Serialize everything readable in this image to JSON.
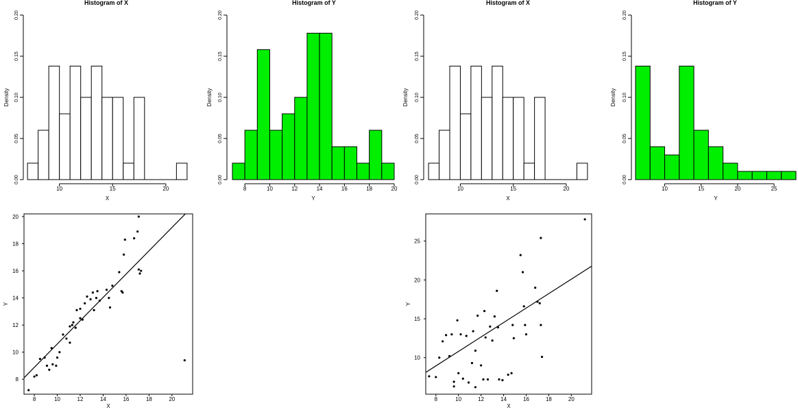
{
  "colors": {
    "histogram_fill_green": "#00ee00",
    "histogram_fill_white": "#ffffff",
    "stroke": "#000000"
  },
  "chart_data": [
    {
      "type": "bar",
      "subtype": "histogram",
      "title": "Histogram of X",
      "xlabel": "X",
      "ylabel": "Density",
      "fill": "white",
      "bin_edges": [
        7,
        8,
        9,
        10,
        11,
        12,
        13,
        14,
        15,
        16,
        17,
        18,
        19,
        20,
        21,
        22
      ],
      "values": [
        0.02,
        0.06,
        0.138,
        0.08,
        0.138,
        0.1,
        0.138,
        0.1,
        0.1,
        0.02,
        0.1,
        0,
        0,
        0,
        0.02
      ],
      "xlim": [
        6.8,
        22.2
      ],
      "ylim": [
        0,
        0.2
      ],
      "xticks": [
        10,
        15,
        20
      ],
      "yticks": [
        "0.00",
        "0.05",
        "0.10",
        "0.15",
        "0.20"
      ]
    },
    {
      "type": "bar",
      "subtype": "histogram",
      "title": "Histogram of Y",
      "xlabel": "Y",
      "ylabel": "Density",
      "fill": "green",
      "bin_edges": [
        7,
        8,
        9,
        10,
        11,
        12,
        13,
        14,
        15,
        16,
        17,
        18,
        19,
        20
      ],
      "values": [
        0.02,
        0.06,
        0.158,
        0.06,
        0.08,
        0.1,
        0.178,
        0.178,
        0.04,
        0.04,
        0.02,
        0.06,
        0.02
      ],
      "xlim": [
        7,
        20
      ],
      "ylim": [
        0,
        0.2
      ],
      "xticks": [
        8,
        10,
        12,
        14,
        16,
        18,
        20
      ],
      "yticks": [
        "0.00",
        "0.05",
        "0.10",
        "0.15",
        "0.20"
      ]
    },
    {
      "type": "bar",
      "subtype": "histogram",
      "title": "Histogram of X",
      "xlabel": "X",
      "ylabel": "Density",
      "fill": "white",
      "bin_edges": [
        7,
        8,
        9,
        10,
        11,
        12,
        13,
        14,
        15,
        16,
        17,
        18,
        19,
        20,
        21,
        22
      ],
      "values": [
        0.02,
        0.06,
        0.138,
        0.08,
        0.138,
        0.1,
        0.138,
        0.1,
        0.1,
        0.02,
        0.1,
        0,
        0,
        0,
        0.02
      ],
      "xlim": [
        6.8,
        22.2
      ],
      "ylim": [
        0,
        0.2
      ],
      "xticks": [
        10,
        15,
        20
      ],
      "yticks": [
        "0.00",
        "0.05",
        "0.10",
        "0.15",
        "0.20"
      ]
    },
    {
      "type": "bar",
      "subtype": "histogram",
      "title": "Histogram of Y",
      "xlabel": "Y",
      "ylabel": "Density",
      "fill": "green",
      "bin_edges": [
        6,
        8,
        10,
        12,
        14,
        16,
        18,
        20,
        22,
        24,
        26,
        28
      ],
      "values": [
        0.138,
        0.04,
        0.03,
        0.138,
        0.06,
        0.04,
        0.02,
        0.01,
        0.01,
        0.01,
        0.01
      ],
      "xlim": [
        6,
        28
      ],
      "ylim": [
        0,
        0.2
      ],
      "xticks": [
        10,
        15,
        20,
        25
      ],
      "yticks": [
        "0.00",
        "0.05",
        "0.10",
        "0.15",
        "0.20"
      ]
    },
    {
      "type": "scatter",
      "xlabel": "X",
      "ylabel": "Y",
      "xlim": [
        7.1,
        21.8
      ],
      "ylim": [
        6.9,
        20.2
      ],
      "xticks": [
        8,
        10,
        12,
        14,
        16,
        18,
        20
      ],
      "yticks": [
        8,
        10,
        12,
        14,
        16,
        18,
        20
      ],
      "fit_line": {
        "intercept": 2.0,
        "slope": 0.86
      },
      "points": [
        [
          7.5,
          7.2
        ],
        [
          8.0,
          8.2
        ],
        [
          8.2,
          8.3
        ],
        [
          8.5,
          9.5
        ],
        [
          8.9,
          9.6
        ],
        [
          9.1,
          9.0
        ],
        [
          9.3,
          8.7
        ],
        [
          9.5,
          10.3
        ],
        [
          9.6,
          9.1
        ],
        [
          9.9,
          9.0
        ],
        [
          10.0,
          9.6
        ],
        [
          10.2,
          10.0
        ],
        [
          10.5,
          11.3
        ],
        [
          10.8,
          11.0
        ],
        [
          11.1,
          11.9
        ],
        [
          11.3,
          12.0
        ],
        [
          11.4,
          12.2
        ],
        [
          11.1,
          10.7
        ],
        [
          11.6,
          11.8
        ],
        [
          11.7,
          13.1
        ],
        [
          12.0,
          12.5
        ],
        [
          12.0,
          13.2
        ],
        [
          12.2,
          12.4
        ],
        [
          12.4,
          13.6
        ],
        [
          12.6,
          14.1
        ],
        [
          12.9,
          13.9
        ],
        [
          13.1,
          14.4
        ],
        [
          13.2,
          13.1
        ],
        [
          13.5,
          14.5
        ],
        [
          13.4,
          14.0
        ],
        [
          13.7,
          13.8
        ],
        [
          14.3,
          14.6
        ],
        [
          14.5,
          14.0
        ],
        [
          14.6,
          13.3
        ],
        [
          14.8,
          14.9
        ],
        [
          15.4,
          15.9
        ],
        [
          15.6,
          14.5
        ],
        [
          15.7,
          14.4
        ],
        [
          15.8,
          17.2
        ],
        [
          15.9,
          18.3
        ],
        [
          16.7,
          18.4
        ],
        [
          17.0,
          18.9
        ],
        [
          17.1,
          16.1
        ],
        [
          17.2,
          15.8
        ],
        [
          17.3,
          16.0
        ],
        [
          17.1,
          20.0
        ],
        [
          21.1,
          9.4
        ]
      ]
    },
    {
      "type": "scatter",
      "xlabel": "X",
      "ylabel": "Y",
      "xlim": [
        7.1,
        21.8
      ],
      "ylim": [
        5.3,
        28.5
      ],
      "xticks": [
        8,
        10,
        12,
        14,
        16,
        18,
        20
      ],
      "yticks": [
        10,
        15,
        20,
        25
      ],
      "fit_line": {
        "intercept": 1.5,
        "slope": 0.93
      },
      "points": [
        [
          7.4,
          7.6
        ],
        [
          8.0,
          7.5
        ],
        [
          8.3,
          10.0
        ],
        [
          8.6,
          12.1
        ],
        [
          8.9,
          12.9
        ],
        [
          9.2,
          10.2
        ],
        [
          9.4,
          13.0
        ],
        [
          9.6,
          6.3
        ],
        [
          9.6,
          6.9
        ],
        [
          9.9,
          14.8
        ],
        [
          10.0,
          8.0
        ],
        [
          10.2,
          13.0
        ],
        [
          10.4,
          7.3
        ],
        [
          10.7,
          12.8
        ],
        [
          10.9,
          6.8
        ],
        [
          11.2,
          9.3
        ],
        [
          11.3,
          13.4
        ],
        [
          11.5,
          10.9
        ],
        [
          11.5,
          6.2
        ],
        [
          11.7,
          15.4
        ],
        [
          12.0,
          9.0
        ],
        [
          12.2,
          7.2
        ],
        [
          12.3,
          16.0
        ],
        [
          12.4,
          12.6
        ],
        [
          12.6,
          7.2
        ],
        [
          12.8,
          14.0
        ],
        [
          13.0,
          12.2
        ],
        [
          13.2,
          15.3
        ],
        [
          13.4,
          18.6
        ],
        [
          13.5,
          13.9
        ],
        [
          13.6,
          7.2
        ],
        [
          13.9,
          7.1
        ],
        [
          14.4,
          7.8
        ],
        [
          14.7,
          8.0
        ],
        [
          14.8,
          14.2
        ],
        [
          14.9,
          12.5
        ],
        [
          15.5,
          23.2
        ],
        [
          15.7,
          21.0
        ],
        [
          15.8,
          16.6
        ],
        [
          15.9,
          14.2
        ],
        [
          16.0,
          13.0
        ],
        [
          16.8,
          19.0
        ],
        [
          17.0,
          17.2
        ],
        [
          17.2,
          17.0
        ],
        [
          17.3,
          25.4
        ],
        [
          17.3,
          14.2
        ],
        [
          17.4,
          10.1
        ],
        [
          21.2,
          27.8
        ]
      ]
    }
  ]
}
